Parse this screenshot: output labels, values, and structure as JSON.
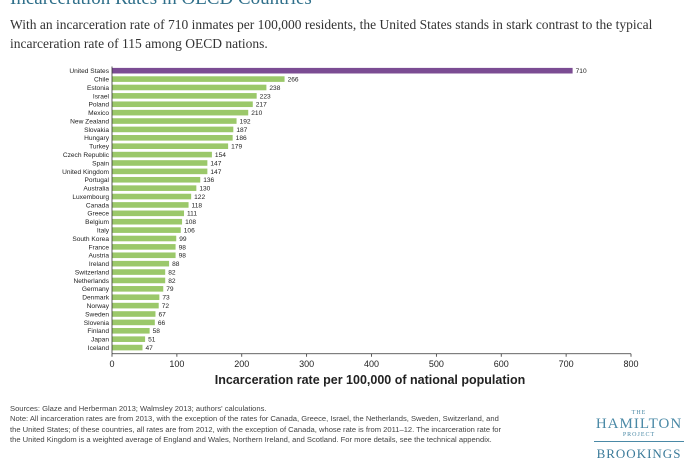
{
  "header": {
    "title": "Incarceration Rates in OECD Countries",
    "subtitle": "With an incarceration rate of 710 inmates per 100,000 residents, the United States stands in stark contrast to the typical incarceration rate of 115 among OECD nations."
  },
  "chart_data": {
    "type": "bar",
    "orientation": "horizontal",
    "title": "",
    "xlabel": "Incarceration rate per 100,000 of national population",
    "ylabel": "",
    "xlim": [
      0,
      800
    ],
    "xticks": [
      0,
      100,
      200,
      300,
      400,
      500,
      600,
      700,
      800
    ],
    "grid": false,
    "categories": [
      "United States",
      "Chile",
      "Estonia",
      "Israel",
      "Poland",
      "Mexico",
      "New Zealand",
      "Slovakia",
      "Hungary",
      "Turkey",
      "Czech Republic",
      "Spain",
      "United Kingdom",
      "Portugal",
      "Australia",
      "Luxembourg",
      "Canada",
      "Greece",
      "Belgium",
      "Italy",
      "South Korea",
      "France",
      "Austria",
      "Ireland",
      "Switzerland",
      "Netherlands",
      "Germany",
      "Denmark",
      "Norway",
      "Sweden",
      "Slovenia",
      "Finland",
      "Japan",
      "Iceland"
    ],
    "values": [
      710,
      266,
      238,
      223,
      217,
      210,
      192,
      187,
      186,
      179,
      154,
      147,
      147,
      136,
      130,
      122,
      118,
      111,
      108,
      106,
      99,
      98,
      98,
      88,
      82,
      82,
      79,
      73,
      72,
      67,
      66,
      58,
      51,
      47
    ],
    "highlight_category": "United States",
    "colors": {
      "highlight": "#7b4c93",
      "bar": "#9bc86a",
      "axis": "#333333"
    }
  },
  "footer": {
    "sources": "Sources: Glaze and Herberman 2013; Walmsley 2013; authors' calculations.",
    "note": "Note: All incarceration rates are from 2013, with the exception of the rates for Canada, Greece, Israel, the Netherlands, Sweden, Switzerland, and the United States; of these countries, all rates are from 2012, with the exception of Canada, whose rate is from 2011–12. The incarceration rate for the United Kingdom is a weighted average of England and Wales, Northern Ireland, and Scotland. For more details, see the technical appendix."
  },
  "logo": {
    "the": "THE",
    "name": "HAMILTON",
    "project": "PROJECT",
    "org": "BROOKINGS"
  }
}
